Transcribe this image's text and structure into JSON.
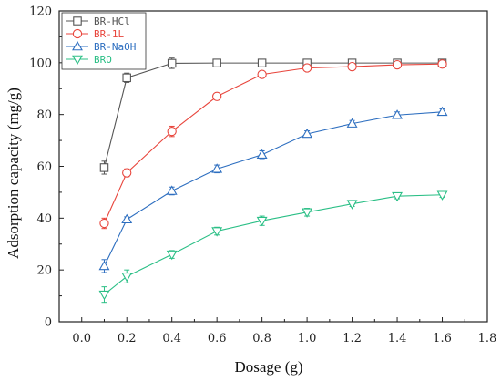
{
  "chart_data": {
    "type": "line",
    "xlabel": "Dosage (g)",
    "ylabel": "Adsorption capacity (mg/g)",
    "xlim": [
      -0.1,
      1.8
    ],
    "ylim": [
      0,
      120
    ],
    "x_ticks": [
      0.0,
      0.2,
      0.4,
      0.6,
      0.8,
      1.0,
      1.2,
      1.4,
      1.6,
      1.8
    ],
    "x_tick_labels": [
      "0.0",
      "0.2",
      "0.4",
      "0.6",
      "0.8",
      "1.0",
      "1.2",
      "1.4",
      "1.6",
      "1.8"
    ],
    "y_ticks": [
      0,
      20,
      40,
      60,
      80,
      100,
      120
    ],
    "y_tick_labels": [
      "0",
      "20",
      "40",
      "60",
      "80",
      "100",
      "120"
    ],
    "grid": false,
    "legend_position": "top-left",
    "series": [
      {
        "name": "BR-HCl",
        "color": "#555555",
        "marker": "square",
        "x": [
          0.1,
          0.2,
          0.4,
          0.6,
          0.8,
          1.0,
          1.2,
          1.4,
          1.6
        ],
        "y": [
          59.5,
          94.2,
          99.8,
          99.9,
          99.9,
          99.9,
          99.9,
          99.9,
          99.9
        ],
        "err": [
          2.5,
          1.8,
          2.0,
          0.5,
          0.5,
          0.5,
          0.5,
          0.5,
          0.5
        ]
      },
      {
        "name": "BR-1L",
        "color": "#e8453c",
        "marker": "circle",
        "x": [
          0.1,
          0.2,
          0.4,
          0.6,
          0.8,
          1.0,
          1.2,
          1.4,
          1.6
        ],
        "y": [
          38.0,
          57.5,
          73.5,
          87.0,
          95.5,
          98.0,
          98.5,
          99.2,
          99.5
        ],
        "err": [
          2.0,
          1.5,
          2.0,
          1.0,
          1.0,
          1.0,
          1.0,
          1.0,
          0.8
        ]
      },
      {
        "name": "BR-NaOH",
        "color": "#2e6fc0",
        "marker": "triangle-up",
        "x": [
          0.1,
          0.2,
          0.4,
          0.6,
          0.8,
          1.0,
          1.2,
          1.4,
          1.6
        ],
        "y": [
          21.5,
          39.5,
          50.5,
          59.0,
          64.5,
          72.5,
          76.5,
          79.8,
          81.0
        ],
        "err": [
          2.5,
          1.0,
          1.5,
          1.5,
          1.5,
          1.2,
          1.2,
          1.2,
          1.2
        ]
      },
      {
        "name": "BRO",
        "color": "#2bbf86",
        "marker": "triangle-down",
        "x": [
          0.1,
          0.2,
          0.4,
          0.6,
          0.8,
          1.0,
          1.2,
          1.4,
          1.6
        ],
        "y": [
          10.5,
          17.5,
          26.0,
          35.0,
          39.0,
          42.3,
          45.5,
          48.5,
          49.0
        ],
        "err": [
          3.0,
          2.5,
          1.5,
          1.5,
          1.8,
          1.5,
          1.0,
          1.0,
          1.0
        ]
      }
    ],
    "legend": [
      "BR-HCl",
      "BR-1L",
      "BR-NaOH",
      "BRO"
    ]
  }
}
